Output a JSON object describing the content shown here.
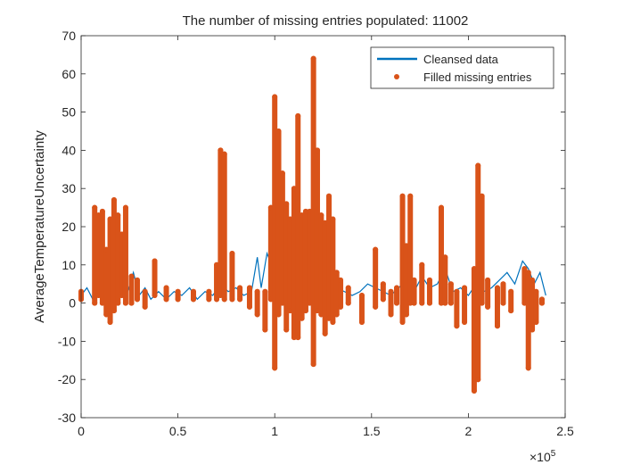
{
  "chart_data": {
    "type": "line",
    "title": "The number of missing entries populated: 11002",
    "xlabel": "",
    "ylabel": "AverageTemperatureUncertainty",
    "x_exponent_label": "×10",
    "x_exponent_power": "5",
    "xlim": [
      0,
      2.5
    ],
    "ylim": [
      -30,
      70
    ],
    "x_ticks": [
      0,
      0.5,
      1,
      1.5,
      2,
      2.5
    ],
    "x_tick_labels": [
      "0",
      "0.5",
      "1",
      "1.5",
      "2",
      "2.5"
    ],
    "y_ticks": [
      -30,
      -20,
      -10,
      0,
      10,
      20,
      30,
      40,
      50,
      60,
      70
    ],
    "y_tick_labels": [
      "-30",
      "-20",
      "-10",
      "0",
      "10",
      "20",
      "30",
      "40",
      "50",
      "60",
      "70"
    ],
    "grid": false,
    "legend_position": "top-right",
    "series": [
      {
        "name": "Cleansed data",
        "style": "line",
        "color": "#0072BD",
        "x": [
          0.0,
          0.03,
          0.06,
          0.09,
          0.12,
          0.15,
          0.18,
          0.21,
          0.24,
          0.27,
          0.3,
          0.33,
          0.36,
          0.4,
          0.44,
          0.48,
          0.52,
          0.56,
          0.6,
          0.64,
          0.68,
          0.72,
          0.76,
          0.8,
          0.84,
          0.88,
          0.91,
          0.93,
          0.96,
          1.0,
          1.03,
          1.06,
          1.1,
          1.13,
          1.16,
          1.2,
          1.24,
          1.28,
          1.32,
          1.36,
          1.4,
          1.44,
          1.48,
          1.52,
          1.56,
          1.6,
          1.64,
          1.68,
          1.72,
          1.76,
          1.8,
          1.84,
          1.88,
          1.92,
          1.96,
          2.0,
          2.04,
          2.08,
          2.12,
          2.16,
          2.2,
          2.24,
          2.28,
          2.31,
          2.34,
          2.37,
          2.4
        ],
        "y": [
          2,
          4,
          1,
          5,
          2,
          6,
          1,
          5,
          3,
          8,
          2,
          4,
          1,
          3,
          1,
          3,
          2,
          4,
          1,
          3,
          2,
          5,
          3,
          4,
          2,
          3,
          12,
          4,
          13,
          8,
          6,
          7,
          9,
          5,
          4,
          6,
          7,
          5,
          4,
          3,
          2,
          3,
          5,
          4,
          3,
          2,
          4,
          6,
          3,
          7,
          4,
          5,
          9,
          3,
          4,
          2,
          5,
          3,
          4,
          6,
          8,
          5,
          11,
          9,
          5,
          8,
          2
        ]
      },
      {
        "name": "Filled missing entries",
        "style": "markers",
        "color": "#D95319",
        "spikes": [
          {
            "x": 0.0,
            "low": 1,
            "high": 3
          },
          {
            "x": 0.07,
            "low": 0,
            "high": 25
          },
          {
            "x": 0.09,
            "low": 2,
            "high": 23
          },
          {
            "x": 0.11,
            "low": 0,
            "high": 24
          },
          {
            "x": 0.13,
            "low": -3,
            "high": 14
          },
          {
            "x": 0.15,
            "low": -5,
            "high": 22
          },
          {
            "x": 0.17,
            "low": -2,
            "high": 27
          },
          {
            "x": 0.19,
            "low": 0,
            "high": 23
          },
          {
            "x": 0.21,
            "low": 2,
            "high": 18
          },
          {
            "x": 0.23,
            "low": 0,
            "high": 25
          },
          {
            "x": 0.26,
            "low": 0,
            "high": 7
          },
          {
            "x": 0.29,
            "low": 1,
            "high": 6
          },
          {
            "x": 0.33,
            "low": -1,
            "high": 3
          },
          {
            "x": 0.38,
            "low": 2,
            "high": 11
          },
          {
            "x": 0.44,
            "low": 1,
            "high": 4
          },
          {
            "x": 0.5,
            "low": 1,
            "high": 3
          },
          {
            "x": 0.58,
            "low": 1,
            "high": 3
          },
          {
            "x": 0.66,
            "low": 1,
            "high": 3
          },
          {
            "x": 0.7,
            "low": 1,
            "high": 10
          },
          {
            "x": 0.72,
            "low": 2,
            "high": 40
          },
          {
            "x": 0.74,
            "low": 1,
            "high": 39
          },
          {
            "x": 0.78,
            "low": 1,
            "high": 13
          },
          {
            "x": 0.82,
            "low": 1,
            "high": 4
          },
          {
            "x": 0.87,
            "low": -1,
            "high": 4
          },
          {
            "x": 0.91,
            "low": -3,
            "high": 3
          },
          {
            "x": 0.95,
            "low": -7,
            "high": 3
          },
          {
            "x": 0.98,
            "low": 1,
            "high": 25
          },
          {
            "x": 1.0,
            "low": -17,
            "high": 54
          },
          {
            "x": 1.02,
            "low": -3,
            "high": 45
          },
          {
            "x": 1.04,
            "low": 0,
            "high": 34
          },
          {
            "x": 1.06,
            "low": -7,
            "high": 26
          },
          {
            "x": 1.08,
            "low": -2,
            "high": 22
          },
          {
            "x": 1.1,
            "low": -9,
            "high": 30
          },
          {
            "x": 1.12,
            "low": -9,
            "high": 49
          },
          {
            "x": 1.14,
            "low": -4,
            "high": 23
          },
          {
            "x": 1.16,
            "low": -2,
            "high": 24
          },
          {
            "x": 1.18,
            "low": 0,
            "high": 24
          },
          {
            "x": 1.2,
            "low": -16,
            "high": 64
          },
          {
            "x": 1.22,
            "low": -2,
            "high": 40
          },
          {
            "x": 1.24,
            "low": -3,
            "high": 23
          },
          {
            "x": 1.26,
            "low": -8,
            "high": 21
          },
          {
            "x": 1.28,
            "low": -4,
            "high": 28
          },
          {
            "x": 1.3,
            "low": -5,
            "high": 22
          },
          {
            "x": 1.32,
            "low": -3,
            "high": 8
          },
          {
            "x": 1.34,
            "low": -1,
            "high": 6
          },
          {
            "x": 1.38,
            "low": 0,
            "high": 4
          },
          {
            "x": 1.45,
            "low": -5,
            "high": 2
          },
          {
            "x": 1.52,
            "low": -1,
            "high": 14
          },
          {
            "x": 1.56,
            "low": 1,
            "high": 5
          },
          {
            "x": 1.6,
            "low": -3,
            "high": 3
          },
          {
            "x": 1.63,
            "low": 0,
            "high": 4
          },
          {
            "x": 1.66,
            "low": -5,
            "high": 28
          },
          {
            "x": 1.68,
            "low": -3,
            "high": 15
          },
          {
            "x": 1.7,
            "low": 0,
            "high": 28
          },
          {
            "x": 1.72,
            "low": 0,
            "high": 6
          },
          {
            "x": 1.76,
            "low": 0,
            "high": 10
          },
          {
            "x": 1.8,
            "low": 0,
            "high": 6
          },
          {
            "x": 1.86,
            "low": 0,
            "high": 25
          },
          {
            "x": 1.88,
            "low": 0,
            "high": 12
          },
          {
            "x": 1.91,
            "low": 0,
            "high": 5
          },
          {
            "x": 1.94,
            "low": -6,
            "high": 3
          },
          {
            "x": 1.98,
            "low": -5,
            "high": 4
          },
          {
            "x": 2.03,
            "low": -23,
            "high": 9
          },
          {
            "x": 2.05,
            "low": -20,
            "high": 36
          },
          {
            "x": 2.07,
            "low": 0,
            "high": 28
          },
          {
            "x": 2.1,
            "low": -1,
            "high": 6
          },
          {
            "x": 2.15,
            "low": -6,
            "high": 4
          },
          {
            "x": 2.18,
            "low": 0,
            "high": 5
          },
          {
            "x": 2.22,
            "low": -2,
            "high": 3
          },
          {
            "x": 2.29,
            "low": 0,
            "high": 9
          },
          {
            "x": 2.31,
            "low": -17,
            "high": 8
          },
          {
            "x": 2.33,
            "low": -7,
            "high": 6
          },
          {
            "x": 2.35,
            "low": -5,
            "high": 3
          },
          {
            "x": 2.38,
            "low": 0,
            "high": 1
          }
        ]
      }
    ]
  }
}
